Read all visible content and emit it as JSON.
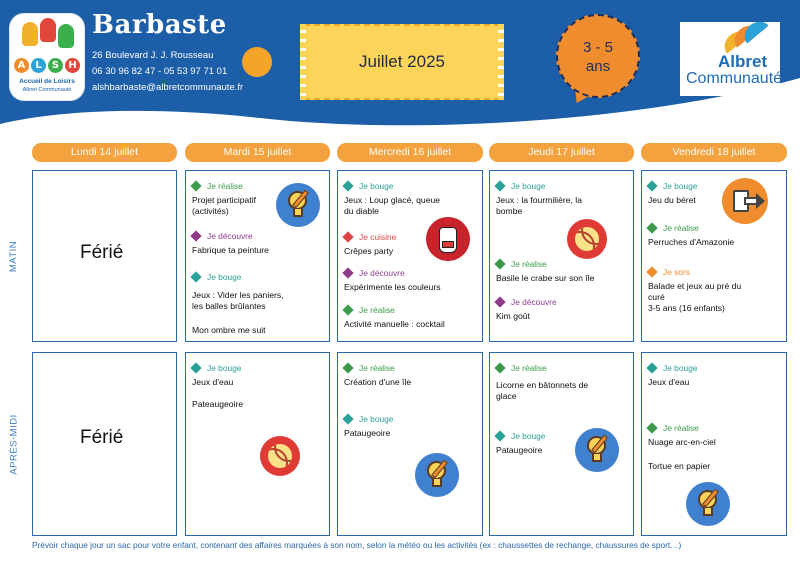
{
  "header": {
    "logo": {
      "letters": [
        "A",
        "L",
        "S",
        "H"
      ],
      "line1": "Accueil de Loisirs",
      "line2": "Albret Communauté"
    },
    "site_name": "Barbaste",
    "address": "26 Boulevard J. J. Rousseau",
    "phones": "06 30 96 82 47 - 05 53 97 71 01",
    "email": "alshbarbaste@albretcommunaute.fr",
    "month": "Juillet 2025",
    "age_line1": "3 - 5",
    "age_line2": "ans",
    "partner_logo": {
      "line1": "Albret",
      "line2": "Communauté"
    }
  },
  "colors": {
    "header_blue": "#1c5ea8",
    "orange": "#f4a23e",
    "grid_blue": "#2a67ad",
    "je_realise": "#2a9d8f",
    "je_bouge": "#2aa198",
    "je_decouvre": "#8e3b8a",
    "je_cuisine": "#d94545",
    "je_sors": "#ef8c2e"
  },
  "days": [
    "Lundi 14 juillet",
    "Mardi 15 juillet",
    "Mercredi 16 juillet",
    "Jeudi 17 juillet",
    "Vendredi 18 juillet"
  ],
  "rows": [
    "MATIN",
    "APRÈS-MIDI"
  ],
  "ferie": "Férié",
  "morning": {
    "tue": [
      {
        "tag": "Je réalise",
        "text": [
          "Projet participatif",
          "(activités)"
        ]
      },
      {
        "tag": "Je découvre",
        "text": [
          "Fabrique ta peinture"
        ]
      },
      {
        "tag": "Je bouge",
        "text": [
          "Jeux : Vider les paniers,",
          "les balles brûlantes"
        ]
      }
    ],
    "tue_extra": "Mon ombre me suit",
    "wed": [
      {
        "tag": "Je bouge",
        "text": [
          "Jeux : Loup glacé, queue",
          "du diable"
        ]
      },
      {
        "tag": "Je cuisine",
        "text": [
          "Crêpes party"
        ]
      },
      {
        "tag": "Je découvre",
        "text": [
          "Expérimente les couleurs"
        ]
      },
      {
        "tag": "Je réalise",
        "text": [
          "Activité manuelle : cocktail"
        ]
      }
    ],
    "thu": [
      {
        "tag": "Je bouge",
        "text": [
          "Jeux : la fourmilière, la",
          "bombe"
        ]
      },
      {
        "tag": "Je réalise",
        "text": [
          "Basile le crabe sur son île"
        ]
      },
      {
        "tag": "Je découvre",
        "text": [
          "Kim goût"
        ]
      }
    ],
    "fri": [
      {
        "tag": "Je bouge",
        "text": [
          "Jeu du béret"
        ]
      },
      {
        "tag": "Je réalise",
        "text": [
          "Perruches d'Amazonie"
        ]
      },
      {
        "tag": "Je sors",
        "text": [
          "Balade et jeux au pré du",
          "curé",
          "3-5 ans (16 enfants)"
        ]
      }
    ]
  },
  "afternoon": {
    "tue": [
      {
        "tag": "Je bouge",
        "text": [
          "Jeux d'eau"
        ]
      }
    ],
    "tue_extra": "Pateaugeoire",
    "wed": [
      {
        "tag": "Je réalise",
        "text": [
          "Création d'une île"
        ]
      },
      {
        "tag": "Je bouge",
        "text": [
          "Pataugeoire"
        ]
      }
    ],
    "thu": [
      {
        "tag": "Je réalise",
        "text": [
          "Licorne en bâtonnets de",
          "glace"
        ]
      },
      {
        "tag": "Je bouge",
        "text": [
          "Pataugeoire"
        ]
      }
    ],
    "fri": [
      {
        "tag": "Je bouge",
        "text": [
          "Jeux d'eau"
        ]
      },
      {
        "tag": "Je réalise",
        "text": [
          "Nuage arc-en-ciel"
        ]
      }
    ],
    "fri_extra": "Tortue en papier"
  },
  "footer": "Prévoir chaque jour un sac pour votre enfant, contenant des affaires marquées à son nom, selon la météo ou les activités (ex : chaussettes de rechange, chaussures de sport…)",
  "icons": [
    "alsh-logo-icon",
    "sun-icon",
    "albret-logo-icon",
    "lightbulb-icon",
    "volleyball-icon",
    "apron-icon",
    "exit-door-icon"
  ]
}
